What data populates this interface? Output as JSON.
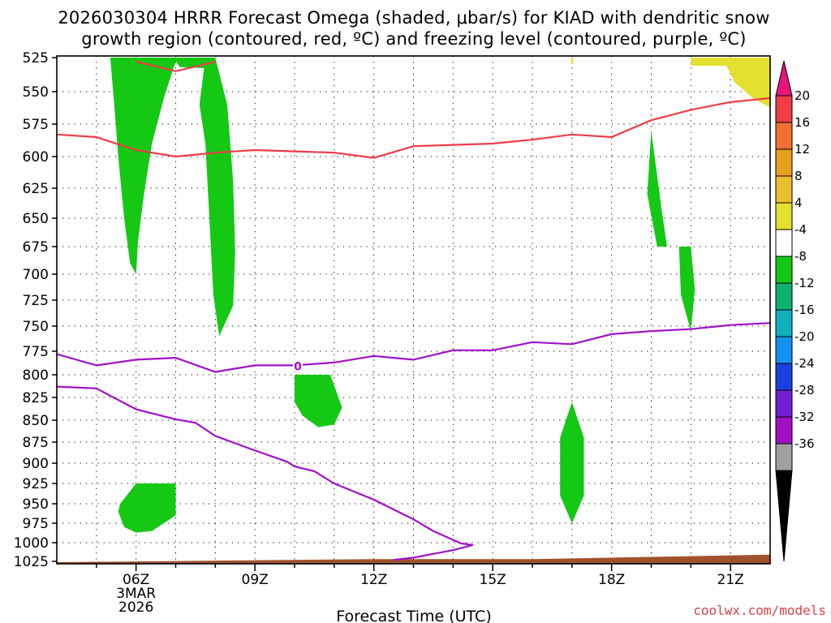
{
  "chart_data": {
    "type": "heatmap",
    "title_lines": [
      "2026030304 HRRR Forecast Omega (shaded, μbar/s) for KIAD with dendritic snow",
      "growth region (contoured, red, ºC) and freezing level (contoured, purple, ºC)"
    ],
    "xlabel": "Forecast Time (UTC)",
    "credit": "coolwx.com/models",
    "x_ticks": [
      {
        "hour": 6,
        "label": "06Z",
        "sub": [
          "3MAR",
          "2026"
        ]
      },
      {
        "hour": 9,
        "label": "09Z"
      },
      {
        "hour": 12,
        "label": "12Z"
      },
      {
        "hour": 15,
        "label": "15Z"
      },
      {
        "hour": 18,
        "label": "18Z"
      },
      {
        "hour": 21,
        "label": "21Z"
      }
    ],
    "x_range": [
      4.0,
      22.0
    ],
    "y_ticks": [
      525,
      550,
      575,
      600,
      625,
      650,
      675,
      700,
      725,
      750,
      775,
      800,
      825,
      850,
      875,
      900,
      925,
      950,
      975,
      1000,
      1025
    ],
    "y_range_hpa": [
      525,
      1030
    ],
    "colorbar": {
      "labels": [
        "20",
        "16",
        "12",
        "8",
        "4",
        "-4",
        "-8",
        "-12",
        "-16",
        "-20",
        "-24",
        "-28",
        "-32",
        "-36"
      ],
      "colors": [
        "#ef3c46",
        "#f07030",
        "#e8a020",
        "#e8c030",
        "#e4e030",
        "#ffffff",
        "#14c814",
        "#10b070",
        "#10b0c0",
        "#1490f0",
        "#1c40e0",
        "#7020d0",
        "#a010c0",
        "#a0a0a0"
      ],
      "top_arrow_color": "#e8147c",
      "bottom_arrow_color": "#000000"
    },
    "freezing_level": {
      "color": "#a010c8",
      "contour_label": "0",
      "label_point": [
        10.0,
        790
      ],
      "points": [
        [
          4.0,
          778
        ],
        [
          5.0,
          790
        ],
        [
          6.0,
          784
        ],
        [
          7.0,
          782
        ],
        [
          8.0,
          797
        ],
        [
          9.0,
          790
        ],
        [
          10.0,
          790
        ],
        [
          11.0,
          787
        ],
        [
          12.0,
          780
        ],
        [
          13.0,
          784
        ],
        [
          14.0,
          774
        ],
        [
          15.0,
          774
        ],
        [
          16.0,
          766
        ],
        [
          17.0,
          768
        ],
        [
          18.0,
          758
        ],
        [
          19.0,
          755
        ],
        [
          20.0,
          753
        ],
        [
          21.0,
          749
        ],
        [
          22.0,
          747
        ]
      ]
    },
    "freezing_level_lower": {
      "color": "#a010c8",
      "points": [
        [
          4.0,
          813
        ],
        [
          5.0,
          815
        ],
        [
          6.0,
          838
        ],
        [
          7.0,
          849
        ],
        [
          7.5,
          853
        ],
        [
          8.0,
          868
        ],
        [
          9.0,
          885
        ],
        [
          9.8,
          898
        ],
        [
          10.0,
          904
        ],
        [
          10.5,
          910
        ],
        [
          11.0,
          925
        ],
        [
          12.0,
          945
        ],
        [
          13.0,
          970
        ],
        [
          13.5,
          985
        ],
        [
          14.2,
          1001
        ],
        [
          14.5,
          1003
        ],
        [
          14.0,
          1010
        ],
        [
          13.0,
          1020
        ],
        [
          12.5,
          1023
        ]
      ]
    },
    "dgz_top": {
      "color": "#ef3c46",
      "points": [
        [
          6.0,
          528
        ],
        [
          7.0,
          535
        ],
        [
          8.0,
          528
        ]
      ]
    },
    "dgz_bottom": {
      "color": "#ef3c46",
      "points": [
        [
          4.0,
          583
        ],
        [
          5.0,
          585
        ],
        [
          6.0,
          595
        ],
        [
          7.0,
          600
        ],
        [
          8.0,
          597
        ],
        [
          9.0,
          595
        ],
        [
          10.0,
          596
        ],
        [
          11.0,
          597
        ],
        [
          12.0,
          601
        ],
        [
          13.0,
          592
        ],
        [
          14.0,
          591
        ],
        [
          15.0,
          590
        ],
        [
          16.0,
          587
        ],
        [
          17.0,
          583
        ],
        [
          18.0,
          585
        ],
        [
          19.0,
          572
        ],
        [
          20.0,
          564
        ],
        [
          21.0,
          558
        ],
        [
          22.0,
          555
        ]
      ]
    },
    "omega_regions": [
      {
        "value_range": [
          -8,
          -4
        ],
        "color": "#14c814",
        "polygon": [
          [
            5.35,
            525
          ],
          [
            6.0,
            525
          ],
          [
            7.05,
            525
          ],
          [
            6.95,
            532
          ],
          [
            6.7,
            555
          ],
          [
            6.4,
            590
          ],
          [
            6.2,
            630
          ],
          [
            6.05,
            670
          ],
          [
            6.0,
            700
          ],
          [
            5.85,
            690
          ],
          [
            5.7,
            650
          ],
          [
            5.55,
            600
          ],
          [
            5.45,
            560
          ]
        ]
      },
      {
        "value_range": [
          -8,
          -4
        ],
        "color": "#14c814",
        "polygon": [
          [
            6.95,
            525
          ],
          [
            8.0,
            525
          ],
          [
            7.9,
            533
          ],
          [
            7.1,
            532
          ]
        ]
      },
      {
        "value_range": [
          -8,
          -4
        ],
        "color": "#14c814",
        "polygon": [
          [
            7.75,
            525
          ],
          [
            8.0,
            525
          ],
          [
            8.3,
            560
          ],
          [
            8.45,
            620
          ],
          [
            8.5,
            680
          ],
          [
            8.45,
            730
          ],
          [
            8.1,
            760
          ],
          [
            7.95,
            720
          ],
          [
            7.85,
            650
          ],
          [
            7.75,
            590
          ],
          [
            7.6,
            560
          ]
        ]
      },
      {
        "value_range": [
          -8,
          -4
        ],
        "color": "#14c814",
        "polygon": [
          [
            5.6,
            950
          ],
          [
            6.0,
            925
          ],
          [
            7.0,
            925
          ],
          [
            7.0,
            965
          ],
          [
            6.4,
            985
          ],
          [
            6.0,
            987
          ],
          [
            5.7,
            980
          ],
          [
            5.55,
            960
          ]
        ]
      },
      {
        "value_range": [
          -8,
          -4
        ],
        "color": "#14c814",
        "polygon": [
          [
            10.0,
            800
          ],
          [
            10.9,
            800
          ],
          [
            11.2,
            836
          ],
          [
            11.0,
            855
          ],
          [
            10.6,
            858
          ],
          [
            10.2,
            845
          ],
          [
            10.0,
            830
          ]
        ]
      },
      {
        "value_range": [
          -8,
          -4
        ],
        "color": "#14c814",
        "polygon": [
          [
            17.0,
            830
          ],
          [
            17.3,
            870
          ],
          [
            17.3,
            940
          ],
          [
            17.0,
            975
          ],
          [
            16.7,
            940
          ],
          [
            16.7,
            870
          ]
        ]
      },
      {
        "value_range": [
          -8,
          -4
        ],
        "color": "#14c814",
        "polygon": [
          [
            19.0,
            580
          ],
          [
            19.25,
            640
          ],
          [
            19.4,
            675
          ],
          [
            19.15,
            675
          ],
          [
            18.9,
            630
          ]
        ]
      },
      {
        "value_range": [
          -8,
          -4
        ],
        "color": "#14c814",
        "polygon": [
          [
            19.7,
            675
          ],
          [
            20.0,
            675
          ],
          [
            20.1,
            715
          ],
          [
            20.0,
            755
          ],
          [
            19.75,
            720
          ]
        ]
      },
      {
        "value_range": [
          4,
          8
        ],
        "color": "#e4e030",
        "polygon": [
          [
            20.0,
            525
          ],
          [
            22.0,
            525
          ],
          [
            22.0,
            562
          ],
          [
            21.6,
            556
          ],
          [
            21.1,
            543
          ],
          [
            20.9,
            531
          ],
          [
            20.0,
            531
          ]
        ]
      },
      {
        "value_range": [
          4,
          8
        ],
        "color": "#e4e030",
        "polygon": [
          [
            16.98,
            525
          ],
          [
            17.03,
            525
          ],
          [
            17.03,
            530
          ],
          [
            16.98,
            530
          ]
        ]
      }
    ],
    "terrain": {
      "color": "#a0522d",
      "top_edge": [
        [
          4.0,
          1026
        ],
        [
          8.0,
          1024
        ],
        [
          12.0,
          1022
        ],
        [
          16.0,
          1022
        ],
        [
          20.0,
          1018
        ],
        [
          22.0,
          1016
        ]
      ]
    }
  }
}
